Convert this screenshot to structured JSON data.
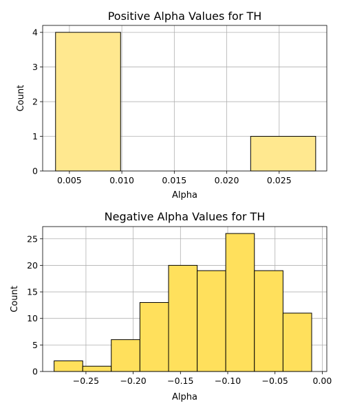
{
  "chart_data": [
    {
      "type": "bar",
      "title": "Positive Alpha Values for TH",
      "xlabel": "Alpha",
      "ylabel": "Count",
      "color": "#ffe88f",
      "xlim": [
        0.00245,
        0.02954
      ],
      "ylim": [
        0,
        4.2
      ],
      "xticks": [
        0.005,
        0.01,
        0.015,
        0.02,
        0.025
      ],
      "xtick_labels": [
        "0.005",
        "0.010",
        "0.015",
        "0.020",
        "0.025"
      ],
      "yticks": [
        0,
        1,
        2,
        3,
        4
      ],
      "ytick_labels": [
        "0",
        "1",
        "2",
        "3",
        "4"
      ],
      "grid": true,
      "bins": [
        {
          "x0": 0.00368,
          "x1": 0.00988,
          "count": 4
        },
        {
          "x0": 0.00988,
          "x1": 0.01608,
          "count": 0
        },
        {
          "x0": 0.01608,
          "x1": 0.02228,
          "count": 0
        },
        {
          "x0": 0.02228,
          "x1": 0.02848,
          "count": 1
        }
      ]
    },
    {
      "type": "bar",
      "title": "Negative Alpha Values for TH",
      "xlabel": "Alpha",
      "ylabel": "Count",
      "color": "#ffe05c",
      "xlim": [
        -0.2958,
        0.0048
      ],
      "ylim": [
        0,
        27.3
      ],
      "xticks": [
        -0.25,
        -0.2,
        -0.15,
        -0.1,
        -0.05,
        0.0
      ],
      "xtick_labels": [
        "−0.25",
        "−0.20",
        "−0.15",
        "−0.10",
        "−0.05",
        "0.00"
      ],
      "yticks": [
        0,
        5,
        10,
        15,
        20,
        25
      ],
      "ytick_labels": [
        "0",
        "5",
        "10",
        "15",
        "20",
        "25"
      ],
      "grid": true,
      "bins": [
        {
          "x0": -0.2837,
          "x1": -0.2534,
          "count": 2
        },
        {
          "x0": -0.2534,
          "x1": -0.2232,
          "count": 1
        },
        {
          "x0": -0.2232,
          "x1": -0.1929,
          "count": 6
        },
        {
          "x0": -0.1929,
          "x1": -0.1626,
          "count": 13
        },
        {
          "x0": -0.1626,
          "x1": -0.1323,
          "count": 20
        },
        {
          "x0": -0.1323,
          "x1": -0.1021,
          "count": 19
        },
        {
          "x0": -0.1021,
          "x1": -0.0718,
          "count": 26
        },
        {
          "x0": -0.0718,
          "x1": -0.0415,
          "count": 19
        },
        {
          "x0": -0.0415,
          "x1": -0.0112,
          "count": 11
        }
      ]
    }
  ]
}
